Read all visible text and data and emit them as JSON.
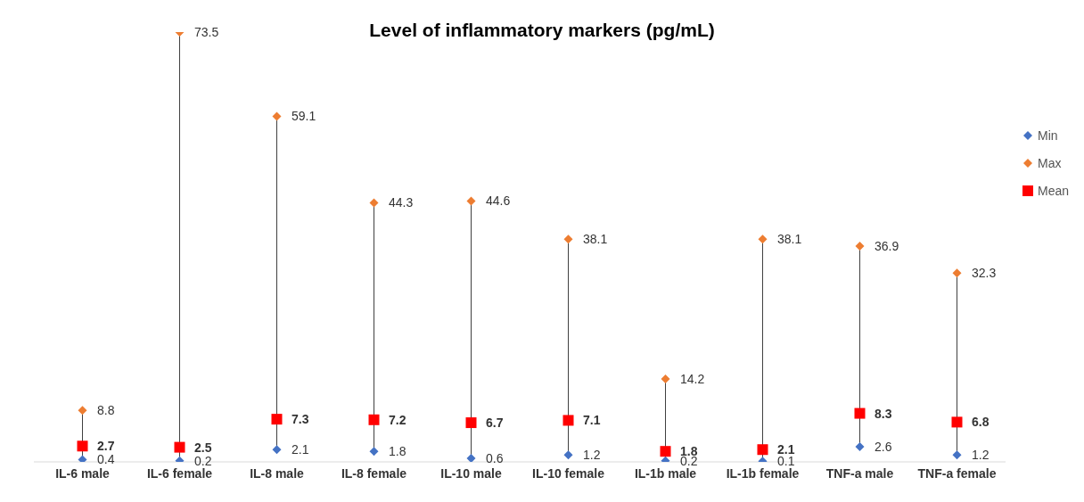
{
  "chart_data": {
    "type": "scatter",
    "title": "Level of inflammatory markers (pg/mL)",
    "categories": [
      "IL-6 male",
      "IL-6 female",
      "IL-8 male",
      "IL-8 female",
      "IL-10 male",
      "IL-10 female",
      "IL-1b male",
      "IL-1b female",
      "TNF-a male",
      "TNF-a female"
    ],
    "series": [
      {
        "name": "Min",
        "color": "#4472c4",
        "marker": "diamond",
        "values": [
          0.4,
          0.2,
          2.1,
          1.8,
          0.6,
          1.2,
          0.2,
          0.1,
          2.6,
          1.2
        ]
      },
      {
        "name": "Max",
        "color": "#ed7d31",
        "marker": "diamond",
        "values": [
          8.8,
          73.5,
          59.1,
          44.3,
          44.6,
          38.1,
          14.2,
          38.1,
          36.9,
          32.3
        ]
      },
      {
        "name": "Mean",
        "color": "#ff0000",
        "marker": "square",
        "values": [
          2.7,
          2.5,
          7.3,
          7.2,
          6.7,
          7.1,
          1.8,
          2.1,
          8.3,
          6.8
        ]
      }
    ],
    "tick_labels": "x",
    "data_labels": true,
    "legend": "right"
  }
}
